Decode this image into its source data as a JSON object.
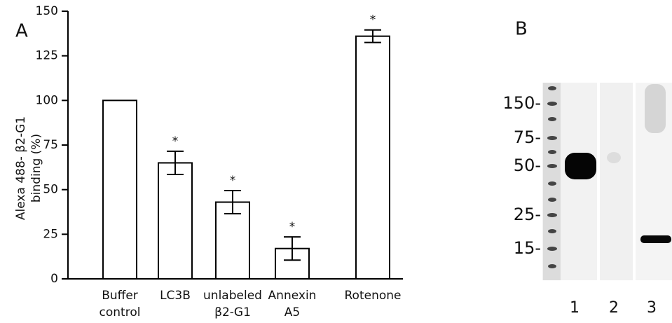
{
  "chart_data": [
    {
      "type": "bar",
      "panel": "A",
      "ylabel": [
        "Alexa 488- β2-G1",
        "binding (%)"
      ],
      "categories": [
        [
          "Buffer",
          "control"
        ],
        [
          "LC3B"
        ],
        [
          "unlabeled",
          "β2-G1"
        ],
        [
          "Annexin",
          "A5"
        ],
        [
          "Rotenone"
        ]
      ],
      "values": [
        100,
        65,
        43,
        17,
        136
      ],
      "errors": [
        null,
        6.5,
        6.5,
        6.5,
        3.5
      ],
      "significance": [
        null,
        "*",
        "*",
        "*",
        "*"
      ],
      "color": "#ffffff",
      "ylim": [
        0,
        150
      ],
      "yticks": [
        0,
        25,
        50,
        75,
        100,
        125,
        150
      ]
    },
    {
      "type": "blot",
      "panel": "B",
      "markers": [
        "150-",
        "75-",
        "50-",
        "25-",
        "15-"
      ],
      "lanes": [
        "1",
        "2",
        "3"
      ]
    }
  ]
}
